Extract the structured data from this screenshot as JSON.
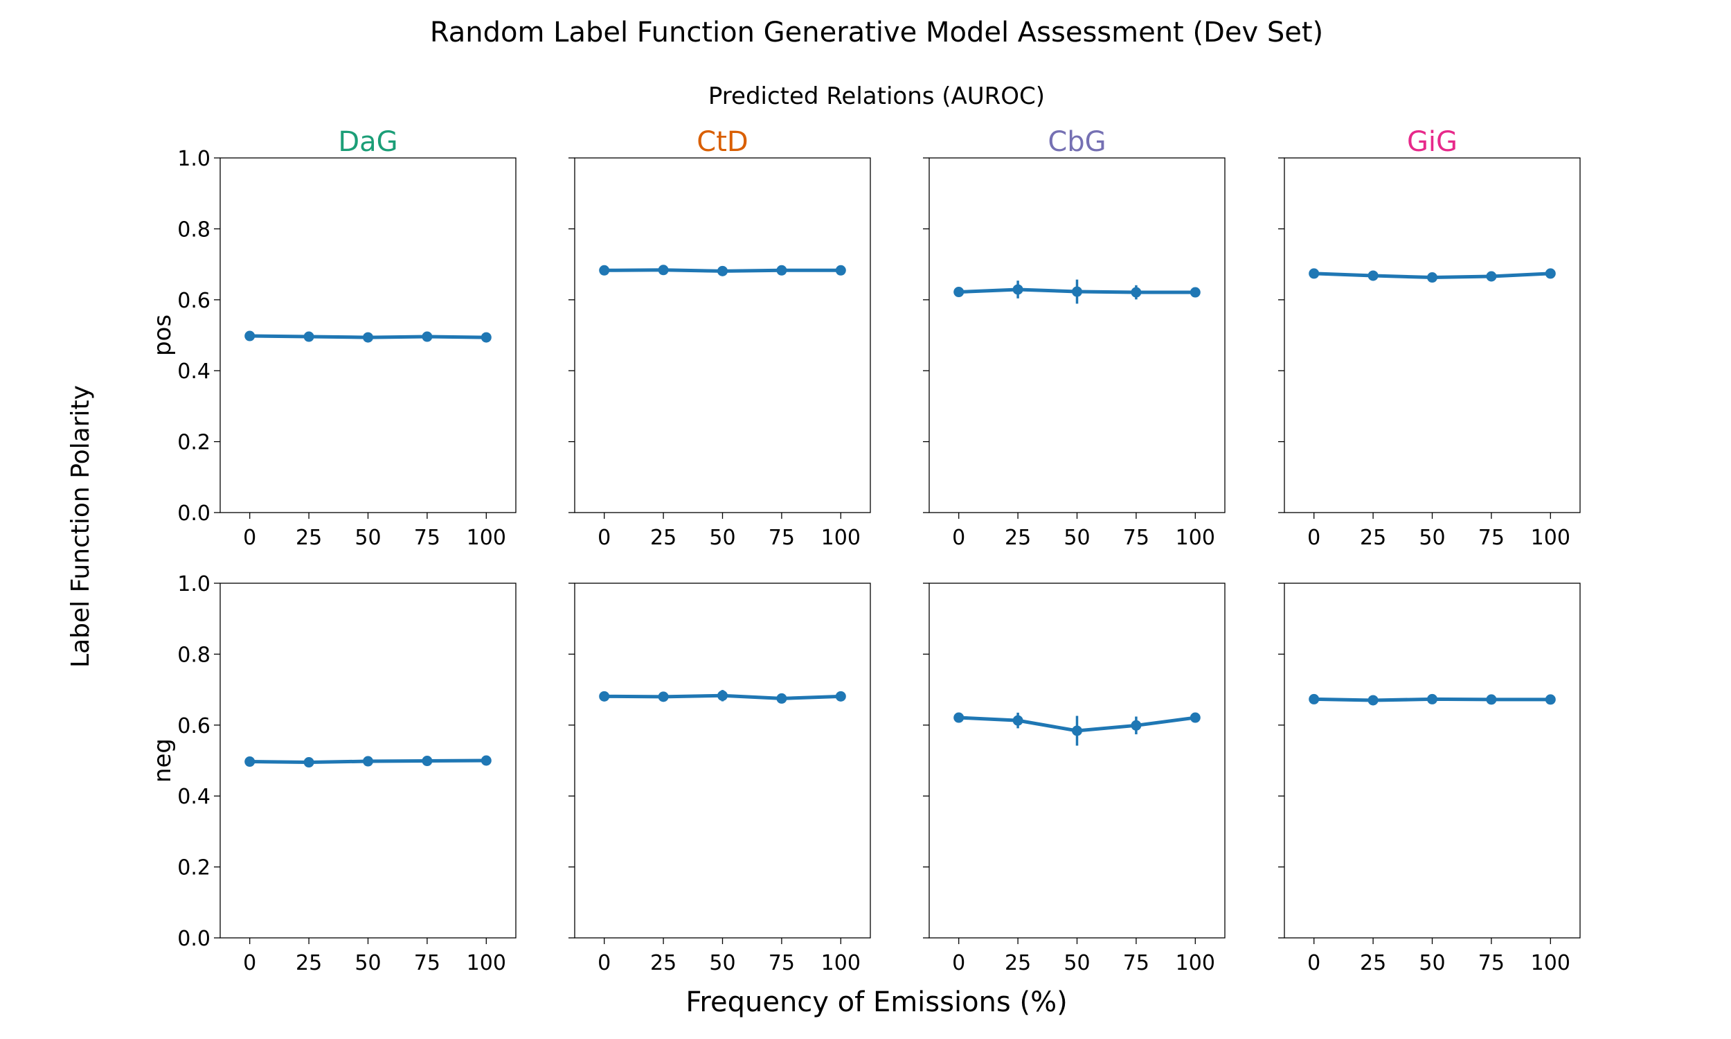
{
  "title": "Random Label Function Generative Model Assessment (Dev Set)",
  "subtitle": "Predicted Relations (AUROC)",
  "xlabel": "Frequency of Emissions (%)",
  "ylabel": "Label Function Polarity",
  "colors": {
    "series": "#1f77b4",
    "DaG": "#1b9e77",
    "CtD": "#d95f02",
    "CbG": "#7570b3",
    "GiG": "#e7298a"
  },
  "chart_data": {
    "type": "line",
    "x": [
      0,
      25,
      50,
      75,
      100
    ],
    "x_tick_labels": [
      "0",
      "25",
      "50",
      "75",
      "100"
    ],
    "ylim": [
      0.0,
      1.0
    ],
    "y_tick_labels": [
      "0.0",
      "0.2",
      "0.4",
      "0.6",
      "0.8",
      "1.0"
    ],
    "columns": [
      "DaG",
      "CtD",
      "CbG",
      "GiG"
    ],
    "rows": [
      "pos",
      "neg"
    ],
    "panels": [
      {
        "row": "pos",
        "column": "DaG",
        "values": [
          0.498,
          0.496,
          0.494,
          0.496,
          0.494
        ],
        "err": [
          0.003,
          0.003,
          0.004,
          0.003,
          0.003
        ]
      },
      {
        "row": "pos",
        "column": "CtD",
        "values": [
          0.683,
          0.684,
          0.681,
          0.683,
          0.683
        ],
        "err": [
          0.003,
          0.003,
          0.004,
          0.003,
          0.003
        ]
      },
      {
        "row": "pos",
        "column": "CbG",
        "values": [
          0.622,
          0.629,
          0.623,
          0.621,
          0.621
        ],
        "err": [
          0.004,
          0.025,
          0.034,
          0.02,
          0.004
        ]
      },
      {
        "row": "pos",
        "column": "GiG",
        "values": [
          0.674,
          0.668,
          0.663,
          0.666,
          0.674
        ],
        "err": [
          0.004,
          0.014,
          0.01,
          0.014,
          0.004
        ]
      },
      {
        "row": "neg",
        "column": "DaG",
        "values": [
          0.497,
          0.495,
          0.498,
          0.499,
          0.5
        ],
        "err": [
          0.003,
          0.003,
          0.004,
          0.003,
          0.003
        ]
      },
      {
        "row": "neg",
        "column": "CtD",
        "values": [
          0.681,
          0.68,
          0.683,
          0.675,
          0.681
        ],
        "err": [
          0.003,
          0.003,
          0.016,
          0.01,
          0.003
        ]
      },
      {
        "row": "neg",
        "column": "CbG",
        "values": [
          0.621,
          0.613,
          0.584,
          0.599,
          0.621
        ],
        "err": [
          0.004,
          0.022,
          0.042,
          0.025,
          0.004
        ]
      },
      {
        "row": "neg",
        "column": "GiG",
        "values": [
          0.673,
          0.67,
          0.673,
          0.672,
          0.672
        ],
        "err": [
          0.004,
          0.012,
          0.008,
          0.01,
          0.004
        ]
      }
    ]
  }
}
